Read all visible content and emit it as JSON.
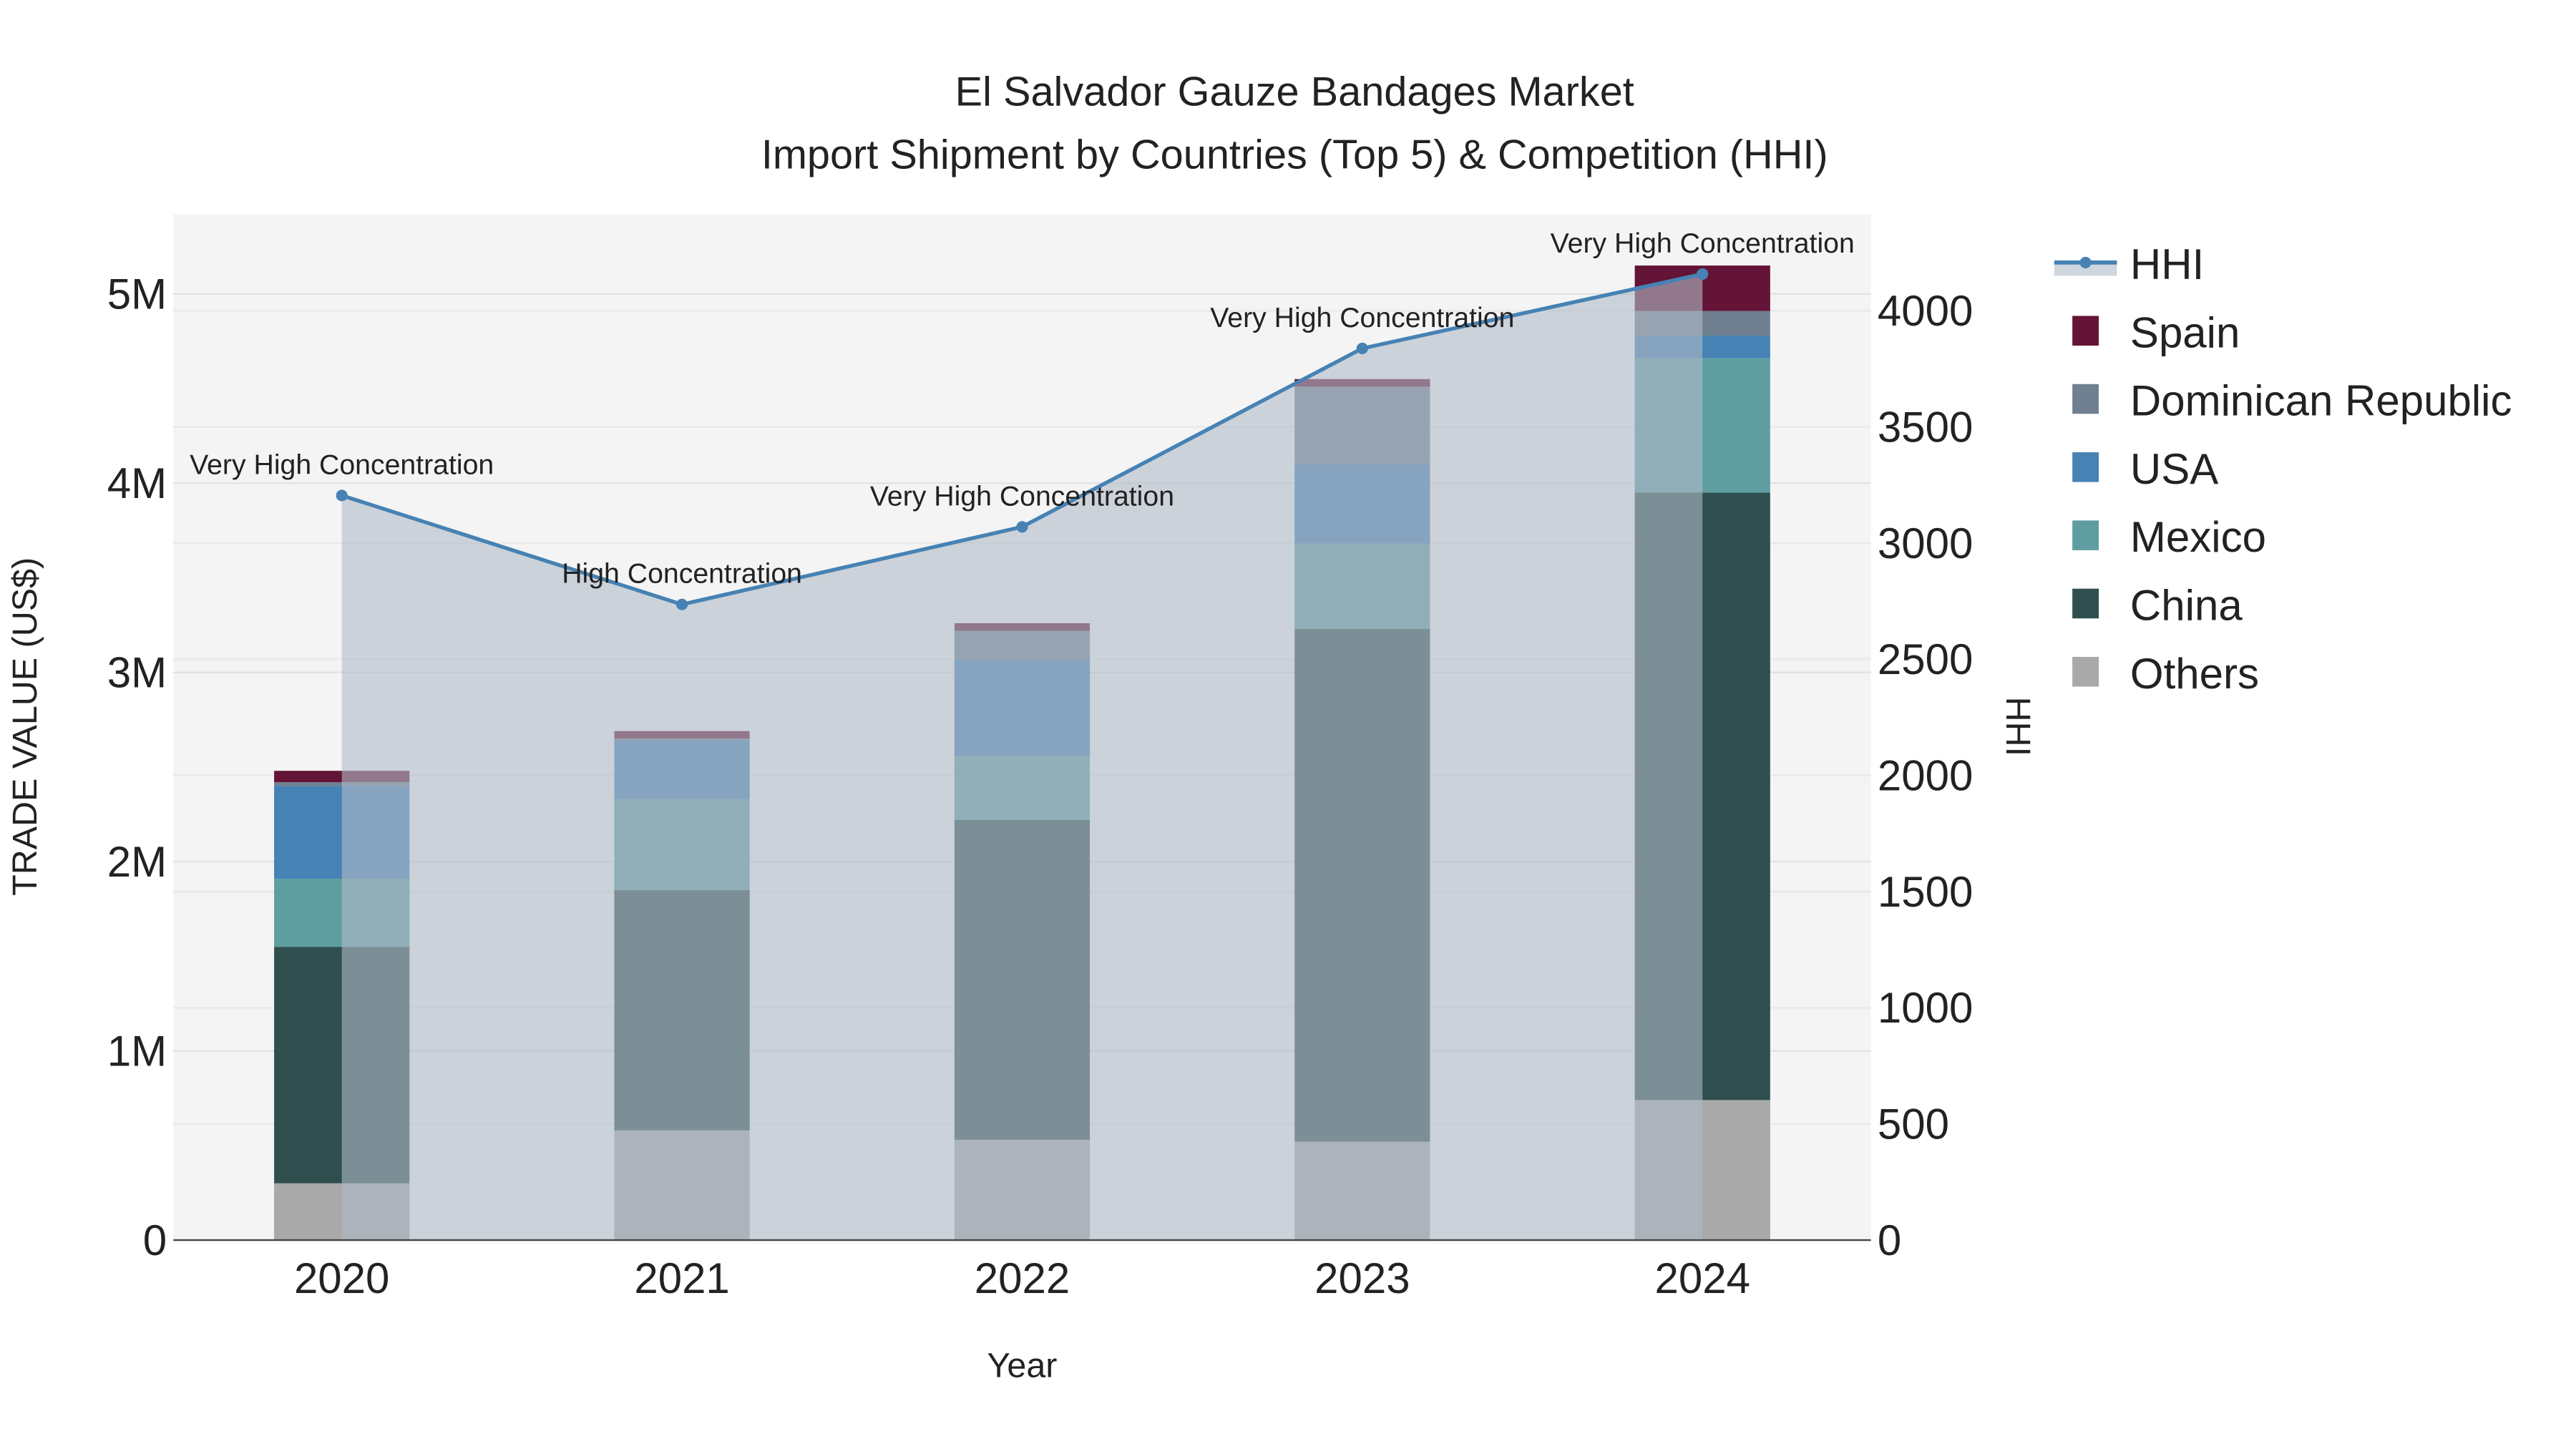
{
  "chart_data": {
    "type": "bar",
    "title": "El Salvador Gauze Bandages Market",
    "subtitle": "Import Shipment by Countries (Top 5) & Competition (HHI)",
    "xlabel": "Year",
    "ylabel": "TRADE VALUE (US$)",
    "y2label": "HHI",
    "categories": [
      "2020",
      "2021",
      "2022",
      "2023",
      "2024"
    ],
    "ylim": [
      0,
      5400000
    ],
    "y2lim": [
      0,
      4400
    ],
    "yticks": [
      {
        "v": 0,
        "label": "0"
      },
      {
        "v": 1000000,
        "label": "1M"
      },
      {
        "v": 2000000,
        "label": "2M"
      },
      {
        "v": 3000000,
        "label": "3M"
      },
      {
        "v": 4000000,
        "label": "4M"
      },
      {
        "v": 5000000,
        "label": "5M"
      }
    ],
    "y2ticks": [
      {
        "v": 0,
        "label": "0"
      },
      {
        "v": 500,
        "label": "500"
      },
      {
        "v": 1000,
        "label": "1000"
      },
      {
        "v": 1500,
        "label": "1500"
      },
      {
        "v": 2000,
        "label": "2000"
      },
      {
        "v": 2500,
        "label": "2500"
      },
      {
        "v": 3000,
        "label": "3000"
      },
      {
        "v": 3500,
        "label": "3500"
      },
      {
        "v": 4000,
        "label": "4000"
      }
    ],
    "grid": true,
    "legend_position": "right",
    "series": [
      {
        "name": "Others",
        "color": "#A9A9A9",
        "values": [
          300000,
          580000,
          530000,
          520000,
          740000
        ]
      },
      {
        "name": "China",
        "color": "#2F4F4F",
        "values": [
          1250000,
          1270000,
          1690000,
          2710000,
          3210000
        ]
      },
      {
        "name": "Mexico",
        "color": "#5F9EA0",
        "values": [
          360000,
          480000,
          340000,
          450000,
          710000
        ]
      },
      {
        "name": "USA",
        "color": "#4682B4",
        "values": [
          490000,
          310000,
          510000,
          420000,
          120000
        ]
      },
      {
        "name": "Dominican Republic",
        "color": "#708090",
        "values": [
          20000,
          10000,
          150000,
          410000,
          130000
        ]
      },
      {
        "name": "Spain",
        "color": "#641436",
        "values": [
          60000,
          40000,
          40000,
          40000,
          240000
        ]
      }
    ],
    "hhi": {
      "name": "HHI",
      "color": "#4682B4",
      "values": [
        3205,
        2736,
        3070,
        3838,
        4158
      ]
    },
    "annotations": [
      "Very High Concentration",
      "High Concentration",
      "Very High Concentration",
      "Very High Concentration",
      "Very High Concentration"
    ],
    "legend_order": [
      "HHI",
      "Spain",
      "Dominican Republic",
      "USA",
      "Mexico",
      "China",
      "Others"
    ]
  }
}
